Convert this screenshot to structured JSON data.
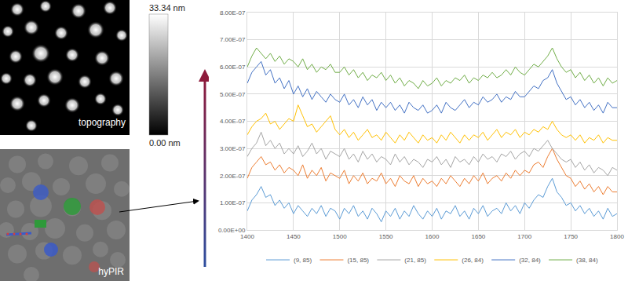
{
  "panels": {
    "topography": {
      "label": "topography"
    },
    "colorbar": {
      "top_label": "33.34 nm",
      "bottom_label": "0.00 nm"
    },
    "hypir": {
      "label": "hyPIR"
    }
  },
  "chart_data": {
    "type": "line",
    "x": [
      1400,
      1405,
      1410,
      1415,
      1420,
      1425,
      1430,
      1435,
      1440,
      1445,
      1450,
      1455,
      1460,
      1465,
      1470,
      1475,
      1480,
      1485,
      1490,
      1495,
      1500,
      1505,
      1510,
      1515,
      1520,
      1525,
      1530,
      1535,
      1540,
      1545,
      1550,
      1555,
      1560,
      1565,
      1570,
      1575,
      1580,
      1585,
      1590,
      1595,
      1600,
      1605,
      1610,
      1615,
      1620,
      1625,
      1630,
      1635,
      1640,
      1645,
      1650,
      1655,
      1660,
      1665,
      1670,
      1675,
      1680,
      1685,
      1690,
      1695,
      1700,
      1705,
      1710,
      1715,
      1720,
      1725,
      1730,
      1735,
      1740,
      1745,
      1750,
      1755,
      1760,
      1765,
      1770,
      1775,
      1780,
      1785,
      1790,
      1795,
      1800
    ],
    "series": [
      {
        "name": "(9, 85)",
        "color": "#5b9bd5",
        "values": [
          7e-08,
          1.1e-07,
          1.3e-07,
          1.6e-07,
          1.2e-07,
          1.3e-07,
          9e-08,
          1.1e-07,
          8e-08,
          1e-07,
          6e-08,
          9e-08,
          7e-08,
          5e-08,
          8e-08,
          6e-08,
          9e-08,
          5e-08,
          8e-08,
          7e-08,
          4e-08,
          8e-08,
          6e-08,
          9e-08,
          5e-08,
          7e-08,
          4e-08,
          8e-08,
          6e-08,
          3e-08,
          7e-08,
          5e-08,
          8e-08,
          4e-08,
          7e-08,
          5e-08,
          9e-08,
          6e-08,
          4e-08,
          7e-08,
          5e-08,
          8e-08,
          4e-08,
          7e-08,
          6e-08,
          9e-08,
          5e-08,
          7e-08,
          4e-08,
          8e-08,
          6e-08,
          9e-08,
          5e-08,
          7e-08,
          8e-08,
          6e-08,
          1e-07,
          7e-08,
          9e-08,
          6e-08,
          1e-07,
          8e-08,
          1.1e-07,
          1.3e-07,
          1.2e-07,
          1.6e-07,
          1.9e-07,
          1.4e-07,
          1.2e-07,
          9e-08,
          1e-07,
          7e-08,
          9e-08,
          6e-08,
          8e-08,
          5e-08,
          7e-08,
          4e-08,
          8e-08,
          5e-08,
          6e-08
        ]
      },
      {
        "name": "(15, 85)",
        "color": "#ed7d31",
        "values": [
          1.9e-07,
          2.3e-07,
          2.5e-07,
          2.7e-07,
          2.4e-07,
          2.5e-07,
          2.2e-07,
          2.4e-07,
          2.1e-07,
          2.3e-07,
          2.2e-07,
          2e-07,
          2.4e-07,
          1.9e-07,
          2.2e-07,
          2e-07,
          2.3e-07,
          1.8e-07,
          2.1e-07,
          2e-07,
          1.9e-07,
          2.2e-07,
          1.7e-07,
          2e-07,
          1.8e-07,
          2.1e-07,
          1.7e-07,
          1.9e-07,
          1.8e-07,
          2.1e-07,
          1.7e-07,
          1.9e-07,
          1.6e-07,
          2e-07,
          1.8e-07,
          1.7e-07,
          2e-07,
          1.6e-07,
          1.9e-07,
          1.7e-07,
          1.8e-07,
          1.6e-07,
          1.9e-07,
          1.7e-07,
          2e-07,
          1.8e-07,
          1.6e-07,
          1.9e-07,
          1.7e-07,
          2e-07,
          1.8e-07,
          2.1e-07,
          1.7e-07,
          1.9e-07,
          2e-07,
          1.8e-07,
          2.1e-07,
          1.9e-07,
          2.2e-07,
          2e-07,
          2.2e-07,
          2.1e-07,
          2.4e-07,
          2.5e-07,
          2.3e-07,
          2.7e-07,
          3e-07,
          2.6e-07,
          2.3e-07,
          2e-07,
          1.9e-07,
          1.6e-07,
          1.8e-07,
          1.5e-07,
          1.7e-07,
          1.4e-07,
          1.6e-07,
          1.3e-07,
          1.6e-07,
          1.4e-07,
          1.4e-07
        ]
      },
      {
        "name": "(21, 85)",
        "color": "#a5a5a5",
        "values": [
          2.7e-07,
          3e-07,
          3.2e-07,
          3.6e-07,
          3.1e-07,
          3.3e-07,
          3e-07,
          3.2e-07,
          2.8e-07,
          3e-07,
          2.8e-07,
          3.1e-07,
          2.7e-07,
          2.9e-07,
          3.2e-07,
          2.8e-07,
          3e-07,
          2.6e-07,
          2.9e-07,
          2.8e-07,
          2.7e-07,
          3e-07,
          2.6e-07,
          2.8e-07,
          2.5e-07,
          2.9e-07,
          2.6e-07,
          2.8e-07,
          2.5e-07,
          2.7e-07,
          2.6e-07,
          2.4e-07,
          2.8e-07,
          2.5e-07,
          2.7e-07,
          2.4e-07,
          2.6e-07,
          2.5e-07,
          2.3e-07,
          2.6e-07,
          2.5e-07,
          2.7e-07,
          2.4e-07,
          2.6e-07,
          2.3e-07,
          2.7e-07,
          2.5e-07,
          2.6e-07,
          2.4e-07,
          2.7e-07,
          2.5e-07,
          2.8e-07,
          2.6e-07,
          2.7e-07,
          2.5e-07,
          2.8e-07,
          2.7e-07,
          2.9e-07,
          2.6e-07,
          2.8e-07,
          2.9e-07,
          2.7e-07,
          3e-07,
          2.9e-07,
          3.1e-07,
          3.3e-07,
          3e-07,
          2.8e-07,
          2.6e-07,
          2.5e-07,
          2.6e-07,
          2.3e-07,
          2.5e-07,
          2.2e-07,
          2.4e-07,
          2.1e-07,
          2.3e-07,
          2.2e-07,
          2e-07,
          2.3e-07,
          2.2e-07
        ]
      },
      {
        "name": "(26, 84)",
        "color": "#ffc000",
        "values": [
          3.5e-07,
          3.8e-07,
          4e-07,
          4.1e-07,
          4.3e-07,
          3.9e-07,
          4e-07,
          3.7e-07,
          3.9e-07,
          4.1e-07,
          4e-07,
          4.6e-07,
          4.2e-07,
          3.8e-07,
          3.9e-07,
          3.6e-07,
          3.8e-07,
          4e-07,
          4.2e-07,
          3.7e-07,
          3.5e-07,
          3.7e-07,
          3.4e-07,
          3.6e-07,
          3.3e-07,
          3.5e-07,
          3.7e-07,
          3.4e-07,
          3.5e-07,
          3.3e-07,
          3.6e-07,
          3.4e-07,
          3.2e-07,
          3.5e-07,
          3.3e-07,
          3.6e-07,
          3.4e-07,
          3.2e-07,
          3.5e-07,
          3.3e-07,
          3.4e-07,
          3.2e-07,
          3.5e-07,
          3.3e-07,
          3.6e-07,
          3.4e-07,
          3.2e-07,
          3.5e-07,
          3.3e-07,
          3.5e-07,
          3.4e-07,
          3.6e-07,
          3.3e-07,
          3.5e-07,
          3.7e-07,
          3.4e-07,
          3.6e-07,
          3.5e-07,
          3.7e-07,
          3.4e-07,
          3.6e-07,
          3.5e-07,
          3.7e-07,
          3.6e-07,
          3.8e-07,
          3.7e-07,
          4e-07,
          3.7e-07,
          3.5e-07,
          3.4e-07,
          3.5e-07,
          3.3e-07,
          3.5e-07,
          3.2e-07,
          3.4e-07,
          3.3e-07,
          3.5e-07,
          3.2e-07,
          3.4e-07,
          3.3e-07,
          3.3e-07
        ]
      },
      {
        "name": "(32, 84)",
        "color": "#4472c4",
        "values": [
          5.4e-07,
          5.8e-07,
          6e-07,
          6.2e-07,
          5.7e-07,
          5.9e-07,
          5.4e-07,
          5.6e-07,
          5.2e-07,
          5.5e-07,
          5e-07,
          5.3e-07,
          4.9e-07,
          5.2e-07,
          4.8e-07,
          5.1e-07,
          4.9e-07,
          4.7e-07,
          5e-07,
          4.8e-07,
          4.7e-07,
          5e-07,
          4.6e-07,
          4.8e-07,
          4.5e-07,
          4.9e-07,
          4.6e-07,
          4.8e-07,
          4.4e-07,
          4.7e-07,
          4.5e-07,
          4.7e-07,
          4.4e-07,
          4.6e-07,
          4.3e-07,
          4.7e-07,
          4.5e-07,
          4.4e-07,
          4.6e-07,
          4.3e-07,
          4.4e-07,
          4.6e-07,
          4.3e-07,
          4.7e-07,
          4.5e-07,
          4.4e-07,
          4.6e-07,
          4.8e-07,
          4.5e-07,
          4.7e-07,
          4.6e-07,
          4.9e-07,
          4.7e-07,
          4.8e-07,
          5e-07,
          4.7e-07,
          4.9e-07,
          4.8e-07,
          5.1e-07,
          4.9e-07,
          4.9e-07,
          5.1e-07,
          5.3e-07,
          5.2e-07,
          5.5e-07,
          5.6e-07,
          5.9e-07,
          5.4e-07,
          5.1e-07,
          4.8e-07,
          4.9e-07,
          4.6e-07,
          4.8e-07,
          4.5e-07,
          4.7e-07,
          4.4e-07,
          4.6e-07,
          4.3e-07,
          4.7e-07,
          4.5e-07,
          4.5e-07
        ]
      },
      {
        "name": "(38, 84)",
        "color": "#70ad47",
        "values": [
          6e-07,
          6.4e-07,
          6.7e-07,
          6.5e-07,
          6.3e-07,
          6.5e-07,
          6.2e-07,
          6.4e-07,
          6.1e-07,
          6.3e-07,
          6.2e-07,
          6e-07,
          6.3e-07,
          5.9e-07,
          6.1e-07,
          5.8e-07,
          6e-07,
          5.9e-07,
          6.1e-07,
          5.8e-07,
          5.8e-07,
          6e-07,
          5.7e-07,
          5.9e-07,
          5.6e-07,
          5.8e-07,
          5.5e-07,
          5.7e-07,
          5.6e-07,
          5.8e-07,
          5.5e-07,
          5.7e-07,
          5.4e-07,
          5.6e-07,
          5.3e-07,
          5.5e-07,
          5.4e-07,
          5.2e-07,
          5.5e-07,
          5.3e-07,
          5.4e-07,
          5.6e-07,
          5.3e-07,
          5.5e-07,
          5.4e-07,
          5.6e-07,
          5.5e-07,
          5.7e-07,
          5.4e-07,
          5.6e-07,
          5.5e-07,
          5.7e-07,
          5.6e-07,
          5.8e-07,
          5.6e-07,
          5.7e-07,
          5.9e-07,
          5.7e-07,
          6e-07,
          5.8e-07,
          5.7e-07,
          5.9e-07,
          6.1e-07,
          6e-07,
          6.2e-07,
          6.4e-07,
          6.7e-07,
          6.3e-07,
          6e-07,
          5.8e-07,
          5.9e-07,
          5.6e-07,
          5.8e-07,
          5.5e-07,
          5.7e-07,
          5.4e-07,
          5.6e-07,
          5.3e-07,
          5.6e-07,
          5.4e-07,
          5.5e-07
        ]
      }
    ],
    "xlim": [
      1400,
      1800
    ],
    "xticks": [
      1400,
      1450,
      1500,
      1550,
      1600,
      1650,
      1700,
      1750,
      1800
    ],
    "ylim": [
      0,
      8e-07
    ],
    "yticks": [
      {
        "value": 0,
        "label": "0.00E+00"
      },
      {
        "value": 1e-07,
        "label": "1.00E-07"
      },
      {
        "value": 2e-07,
        "label": "2.00E-07"
      },
      {
        "value": 3e-07,
        "label": "3.00E-07"
      },
      {
        "value": 4e-07,
        "label": "4.00E-07"
      },
      {
        "value": 5e-07,
        "label": "5.00E-07"
      },
      {
        "value": 6e-07,
        "label": "6.00E-07"
      },
      {
        "value": 7e-07,
        "label": "7.00E-07"
      },
      {
        "value": 8e-07,
        "label": "8.00E-07"
      }
    ],
    "grid": true,
    "legend": "bottom"
  }
}
